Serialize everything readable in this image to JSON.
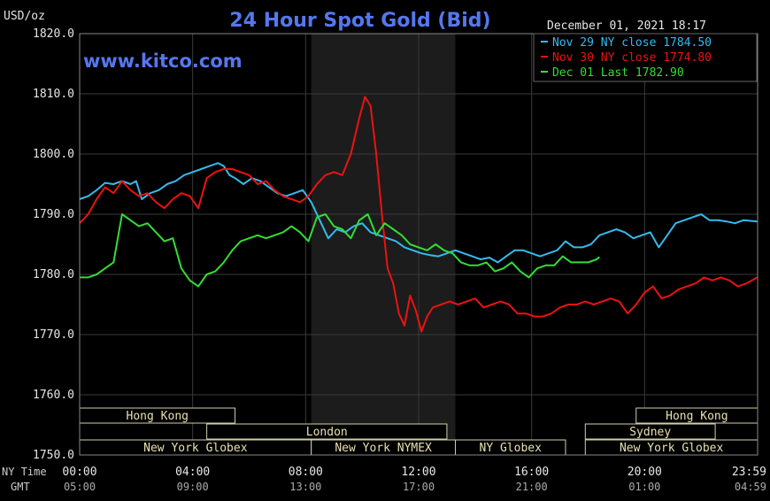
{
  "chart_data": {
    "type": "line",
    "title": "24 Hour Spot Gold (Bid)",
    "unit_label": "USD/oz",
    "timestamp": "December 01, 2021 18:17",
    "watermark": "www.kitco.com",
    "ylim": [
      1750,
      1820
    ],
    "y_ticks": [
      "1820.0",
      "1810.0",
      "1800.0",
      "1790.0",
      "1780.0",
      "1770.0",
      "1760.0",
      "1750.0"
    ],
    "x_row_label_ny": "NY Time",
    "x_row_label_gmt": "GMT",
    "x_ticks_ny": [
      "00:00",
      "04:00",
      "08:00",
      "12:00",
      "16:00",
      "20:00",
      "23:59"
    ],
    "x_ticks_gmt": [
      "05:00",
      "09:00",
      "13:00",
      "17:00",
      "21:00",
      "01:00",
      "04:59"
    ],
    "x_hours": [
      0,
      4,
      8,
      12,
      16,
      20,
      24
    ],
    "shaded_session": {
      "from_hour": 8.2,
      "to_hour": 13.3
    },
    "grid": true,
    "legend_position": "top-right",
    "series": [
      {
        "name": "Nov 29 NY close 1784.50",
        "color": "#33bbee",
        "x": [
          0,
          0.3,
          0.6,
          0.9,
          1.2,
          1.5,
          1.8,
          2.0,
          2.2,
          2.5,
          2.8,
          3.1,
          3.4,
          3.7,
          4.0,
          4.3,
          4.6,
          4.9,
          5.1,
          5.3,
          5.5,
          5.8,
          6.1,
          6.4,
          6.7,
          7.0,
          7.3,
          7.6,
          7.9,
          8.2,
          8.5,
          8.8,
          9.1,
          9.4,
          9.7,
          10.0,
          10.3,
          10.6,
          10.9,
          11.2,
          11.5,
          11.8,
          12.1,
          12.4,
          12.7,
          13.0,
          13.3,
          13.6,
          13.9,
          14.2,
          14.5,
          14.8,
          15.1,
          15.4,
          15.7,
          16.0,
          16.3,
          16.6,
          16.9,
          17.2,
          17.5,
          17.8,
          18.1,
          18.4,
          18.7,
          19.0,
          19.3,
          19.6,
          19.9,
          20.2,
          20.5,
          20.8,
          21.1,
          21.4,
          21.7,
          22.0,
          22.3,
          22.6,
          22.9,
          23.2,
          23.5,
          23.99
        ],
        "values": [
          1792.5,
          1793.0,
          1794.0,
          1795.2,
          1795.0,
          1795.5,
          1795.0,
          1795.5,
          1792.5,
          1793.5,
          1794.0,
          1795.0,
          1795.5,
          1796.5,
          1797.0,
          1797.5,
          1798.0,
          1798.5,
          1798.0,
          1796.5,
          1796.0,
          1795.0,
          1796.0,
          1795.5,
          1794.5,
          1793.5,
          1793.0,
          1793.5,
          1794.0,
          1792.0,
          1789.0,
          1786.0,
          1787.5,
          1787.0,
          1788.0,
          1788.5,
          1787.0,
          1786.5,
          1786.0,
          1785.5,
          1784.5,
          1784.0,
          1783.5,
          1783.2,
          1783.0,
          1783.5,
          1784.0,
          1783.5,
          1783.0,
          1782.5,
          1782.8,
          1782.0,
          1783.0,
          1784.0,
          1784.0,
          1783.5,
          1783.0,
          1783.5,
          1784.0,
          1785.5,
          1784.5,
          1784.5,
          1785.0,
          1786.5,
          1787.0,
          1787.5,
          1787.0,
          1786.0,
          1786.5,
          1787.0,
          1784.5,
          1786.5,
          1788.5,
          1789.0,
          1789.5,
          1790.0,
          1789.0,
          1789.0,
          1788.8,
          1788.5,
          1789.0,
          1788.8
        ]
      },
      {
        "name": "Nov 30 NY close 1774.80",
        "color": "#ee1111",
        "x": [
          0,
          0.3,
          0.6,
          0.9,
          1.2,
          1.5,
          1.8,
          2.1,
          2.4,
          2.7,
          3.0,
          3.3,
          3.6,
          3.9,
          4.2,
          4.5,
          4.8,
          5.1,
          5.4,
          5.7,
          6.0,
          6.3,
          6.6,
          6.9,
          7.2,
          7.5,
          7.8,
          8.1,
          8.4,
          8.7,
          9.0,
          9.3,
          9.6,
          9.9,
          10.1,
          10.3,
          10.5,
          10.7,
          10.9,
          11.1,
          11.3,
          11.5,
          11.7,
          11.9,
          12.1,
          12.3,
          12.5,
          12.8,
          13.1,
          13.4,
          13.7,
          14.0,
          14.3,
          14.6,
          14.9,
          15.2,
          15.5,
          15.8,
          16.1,
          16.4,
          16.7,
          17.0,
          17.3,
          17.6,
          17.9,
          18.2,
          18.5,
          18.8,
          19.1,
          19.4,
          19.7,
          20.0,
          20.3,
          20.6,
          20.9,
          21.2,
          21.5,
          21.8,
          22.1,
          22.4,
          22.7,
          23.0,
          23.3,
          23.6,
          23.99
        ],
        "values": [
          1788.5,
          1790.0,
          1792.5,
          1794.5,
          1793.5,
          1795.5,
          1794.0,
          1793.0,
          1793.5,
          1792.0,
          1791.0,
          1792.5,
          1793.5,
          1793.0,
          1791.0,
          1796.0,
          1797.0,
          1797.5,
          1797.5,
          1797.0,
          1796.5,
          1795.0,
          1795.5,
          1794.0,
          1793.0,
          1792.5,
          1792.0,
          1793.0,
          1795.0,
          1796.5,
          1797.0,
          1796.5,
          1800.0,
          1806.0,
          1809.5,
          1808.0,
          1800.0,
          1790.0,
          1781.0,
          1778.5,
          1773.5,
          1771.5,
          1776.5,
          1774.0,
          1770.5,
          1773.0,
          1774.5,
          1775.0,
          1775.5,
          1775.0,
          1775.5,
          1776.0,
          1774.5,
          1775.0,
          1775.5,
          1775.0,
          1773.5,
          1773.5,
          1773.0,
          1773.0,
          1773.5,
          1774.5,
          1775.0,
          1775.0,
          1775.5,
          1775.0,
          1775.5,
          1776.0,
          1775.5,
          1773.5,
          1775.0,
          1777.0,
          1778.0,
          1776.0,
          1776.5,
          1777.5,
          1778.0,
          1778.5,
          1779.5,
          1779.0,
          1779.5,
          1779.0,
          1778.0,
          1778.5,
          1779.5
        ]
      },
      {
        "name": "Dec 01 Last 1782.90",
        "color": "#33dd33",
        "x": [
          0,
          0.3,
          0.6,
          0.9,
          1.2,
          1.5,
          1.8,
          2.1,
          2.4,
          2.7,
          3.0,
          3.3,
          3.6,
          3.9,
          4.2,
          4.5,
          4.8,
          5.1,
          5.4,
          5.7,
          6.0,
          6.3,
          6.6,
          6.9,
          7.2,
          7.5,
          7.8,
          8.1,
          8.4,
          8.7,
          9.0,
          9.3,
          9.6,
          9.9,
          10.2,
          10.5,
          10.8,
          11.1,
          11.4,
          11.7,
          12.0,
          12.3,
          12.6,
          12.9,
          13.2,
          13.5,
          13.8,
          14.1,
          14.4,
          14.7,
          15.0,
          15.3,
          15.6,
          15.9,
          16.2,
          16.5,
          16.8,
          17.1,
          17.4,
          17.7,
          18.0,
          18.3,
          18.4
        ],
        "values": [
          1779.5,
          1779.5,
          1780.0,
          1781.0,
          1782.0,
          1790.0,
          1789.0,
          1788.0,
          1788.5,
          1787.0,
          1785.5,
          1786.0,
          1781.0,
          1779.0,
          1778.0,
          1780.0,
          1780.5,
          1782.0,
          1784.0,
          1785.5,
          1786.0,
          1786.5,
          1786.0,
          1786.5,
          1787.0,
          1788.0,
          1787.0,
          1785.5,
          1789.5,
          1790.0,
          1788.0,
          1787.5,
          1786.0,
          1789.0,
          1790.0,
          1786.5,
          1788.5,
          1787.5,
          1786.5,
          1785.0,
          1784.5,
          1784.0,
          1785.0,
          1784.0,
          1783.5,
          1782.0,
          1781.5,
          1781.5,
          1782.0,
          1780.5,
          1781.0,
          1782.0,
          1780.5,
          1779.5,
          1781.0,
          1781.5,
          1781.5,
          1783.0,
          1782.0,
          1782.0,
          1782.0,
          1782.5,
          1782.9
        ]
      }
    ],
    "sessions": [
      {
        "label": "Hong Kong",
        "row": 0,
        "from_hour": 0,
        "to_hour": 5.5
      },
      {
        "label": "Hong Kong",
        "row": 0,
        "from_hour": 19.7,
        "to_hour": 24
      },
      {
        "label": "London",
        "row": 1,
        "from_hour": 4.5,
        "to_hour": 13.0
      },
      {
        "label": "Sydney",
        "row": 1,
        "from_hour": 17.9,
        "to_hour": 22.5
      },
      {
        "label": "New York Globex",
        "row": 2,
        "from_hour": 0,
        "to_hour": 8.2
      },
      {
        "label": "New York NYMEX",
        "row": 2,
        "from_hour": 8.2,
        "to_hour": 13.3
      },
      {
        "label": "NY Globex",
        "row": 2,
        "from_hour": 13.3,
        "to_hour": 17.2
      },
      {
        "label": "New York Globex",
        "row": 2,
        "from_hour": 17.9,
        "to_hour": 24
      }
    ]
  }
}
